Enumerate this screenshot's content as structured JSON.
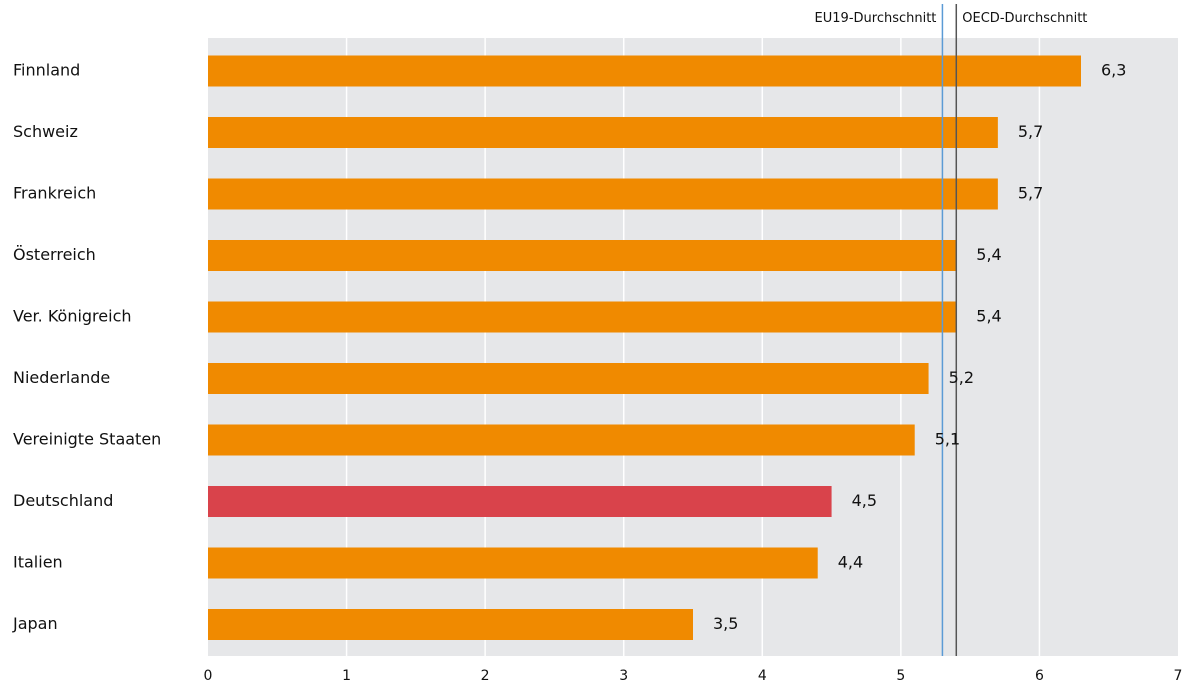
{
  "chart_data": {
    "type": "bar",
    "orientation": "horizontal",
    "categories": [
      "Finnland",
      "Schweiz",
      "Frankreich",
      "Österreich",
      "Ver. Königreich",
      "Niederlande",
      "Vereinigte Staaten",
      "Deutschland",
      "Italien",
      "Japan"
    ],
    "values": [
      6.3,
      5.7,
      5.7,
      5.4,
      5.4,
      5.2,
      5.1,
      4.5,
      4.4,
      3.5
    ],
    "value_labels": [
      "6,3",
      "5,7",
      "5,7",
      "5,4",
      "5,4",
      "5,2",
      "5,1",
      "4,5",
      "4,4",
      "3,5"
    ],
    "highlight_category": "Deutschland",
    "xlim": [
      0,
      7
    ],
    "x_ticks": [
      0,
      1,
      2,
      3,
      4,
      5,
      6,
      7
    ],
    "x_tick_labels": [
      "0",
      "1",
      "2",
      "3",
      "4",
      "5",
      "6",
      "7"
    ],
    "grid": true,
    "reference_lines": [
      {
        "label": "EU19-Durchschnitt",
        "value": 5.3,
        "color": "#5b9bd5"
      },
      {
        "label": "OECD-Durchschnitt",
        "value": 5.4,
        "color": "#555555"
      }
    ],
    "colors": {
      "bar": "#f08a00",
      "highlight": "#d9434b",
      "plot_background": "#e6e7e9",
      "gridline": "#ffffff"
    }
  }
}
